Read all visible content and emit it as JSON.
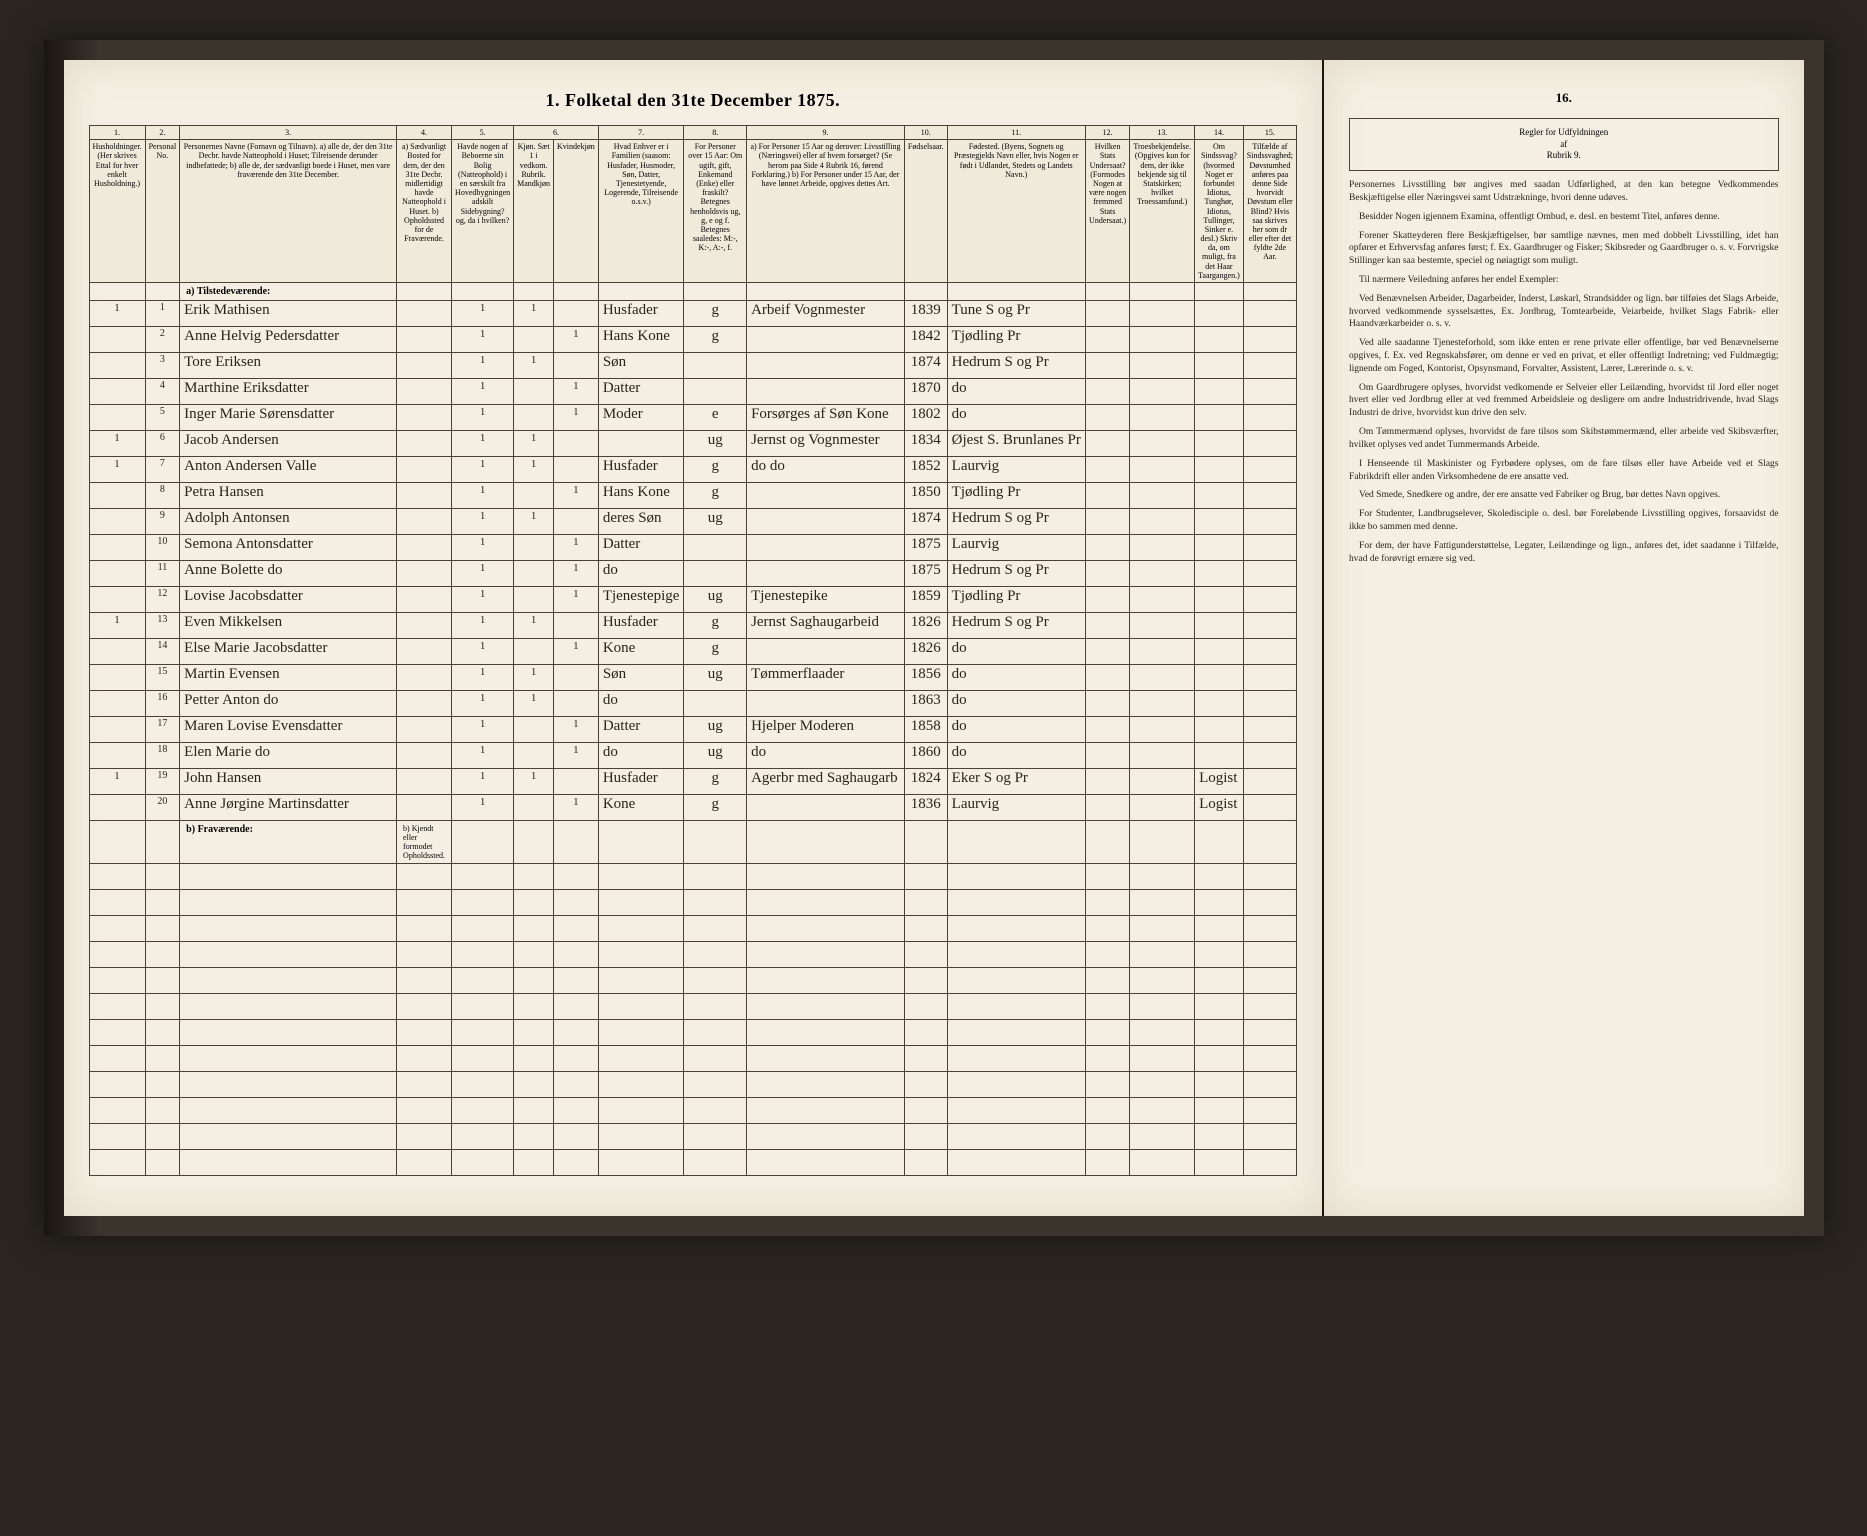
{
  "title": "1. Folketal den 31te December 1875.",
  "colNumbers": [
    "1.",
    "2.",
    "3.",
    "4.",
    "5.",
    "6.",
    "7.",
    "8.",
    "9.",
    "10.",
    "11.",
    "12.",
    "13.",
    "14.",
    "15."
  ],
  "headers": {
    "c1": "Husholdninger. (Her skrives Ettal for hver enkelt Husholdning.)",
    "c2": "Personal No.",
    "c3": "Personernes Navne (Fornavn og Tilnavn).\na) alle de, der den 31te Decbr. havde Natteophold i Huset; Tilreisende derunder indbefattede;\nb) alle de, der sædvanligt boede i Huset, men vare fraværende den 31te December.",
    "c4": "a) Sædvanligt Bosted for dem, der den 31te Decbr. midlertidigt havde Natteophold i Huset.\nb) Opholdssted for de Fraværende.",
    "c5": "Havde nogen af Beboerne sin Bolig (Natteophold) i en særskilt fra Hovedbygningen adskilt Sidebygning? og, da i hvilken?",
    "c6": "Kjøn. Sæt 1 i vedkom. Rubrik. Mandkjøn",
    "c6b": "Kvindekjøn",
    "c7": "Hvad Enhver er i Familien (saasom: Husfader, Husmoder, Søn, Datter, Tjenestetyende, Logerende, Tilreisende o.s.v.)",
    "c8": "For Personer over 15 Aar: Om ugift, gift, Enkemand (Enke) eller fraskilt? Betegnes henholdsvis ug, g, e og f. Betegnes saaledes: M:-, K:-, A:-, f.",
    "c9": "a) For Personer 15 Aar og derover: Livsstilling (Næringsvei) eller af hvem forsørget? (Se herom paa Side 4 Rubrik 16, førend Forklaring.)\nb) For Personer under 15 Aar, der have lønnet Arbeide, opgives dettes Art.",
    "c10": "Fødselsaar.",
    "c11": "Fødested. (Byens, Sognets og Præstegjelds Navn eller, hvis Nogen er født i Udlandet, Stedets og Landets Navn.)",
    "c12": "Hvilken Stats Undersaat? (Formodes Nogen at være nogen fremmed Stats Undersaat.)",
    "c13": "Troesbekjendelse. (Opgives kun for dem, der ikke bekjende sig til Statskirken; hvilket Troessamfund.)",
    "c14": "Om Sindssvag? (hvormed Noget er forbundet Idiotus, Tunghør, Idiotus, Tullinger, Sinker e. desl.) Skriv da, om muligt, fra det Haar Taargangen.)",
    "c15": "Tilfælde af Sindssvaghed; Døvstumhed anføres paa denne Side hvorvidt Døvstum eller Blind? Hvis saa skrives her som dr eller efter det fyldte 2de Aar."
  },
  "sectionA": "a) Tilstedeværende:",
  "sectionB": "b) Fraværende:",
  "sectionB_c4": "b) Kjendt eller formodet Opholdssted.",
  "rows": [
    {
      "hh": "1",
      "no": "1",
      "name": "Erik Mathisen",
      "c5": "1",
      "sexM": "1",
      "rel": "Husfader",
      "ms": "g",
      "occ": "Arbeif Vognmester",
      "year": "1839",
      "place": "Tune S og Pr"
    },
    {
      "hh": "",
      "no": "2",
      "name": "Anne Helvig Pedersdatter",
      "c5": "1",
      "sexF": "1",
      "rel": "Hans Kone",
      "ms": "g",
      "occ": "",
      "year": "1842",
      "place": "Tjødling Pr"
    },
    {
      "hh": "",
      "no": "3",
      "name": "Tore Eriksen",
      "c5": "1",
      "sexM": "1",
      "rel": "Søn",
      "ms": "",
      "occ": "",
      "year": "1874",
      "place": "Hedrum S og Pr"
    },
    {
      "hh": "",
      "no": "4",
      "name": "Marthine Eriksdatter",
      "c5": "1",
      "sexF": "1",
      "rel": "Datter",
      "ms": "",
      "occ": "",
      "year": "1870",
      "place": "do"
    },
    {
      "hh": "",
      "no": "5",
      "name": "Inger Marie Sørensdatter",
      "c5": "1",
      "sexF": "1",
      "rel": "Moder",
      "ms": "e",
      "occ": "Forsørges af Søn Kone",
      "year": "1802",
      "place": "do"
    },
    {
      "hh": "1",
      "no": "6",
      "name": "Jacob Andersen",
      "c5": "1",
      "sexM": "1",
      "rel": "",
      "ms": "ug",
      "occ": "Jernst og Vognmester",
      "year": "1834",
      "place": "Øjest S. Brunlanes Pr"
    },
    {
      "hh": "1",
      "no": "7",
      "name": "Anton Andersen Valle",
      "c5": "1",
      "sexM": "1",
      "rel": "Husfader",
      "ms": "g",
      "occ": "do do",
      "year": "1852",
      "place": "Laurvig"
    },
    {
      "hh": "",
      "no": "8",
      "name": "Petra Hansen",
      "c5": "1",
      "sexF": "1",
      "rel": "Hans Kone",
      "ms": "g",
      "occ": "",
      "year": "1850",
      "place": "Tjødling Pr"
    },
    {
      "hh": "",
      "no": "9",
      "name": "Adolph Antonsen",
      "c5": "1",
      "sexM": "1",
      "rel": "deres Søn",
      "ms": "ug",
      "occ": "",
      "year": "1874",
      "place": "Hedrum S og Pr"
    },
    {
      "hh": "",
      "no": "10",
      "name": "Semona Antonsdatter",
      "c5": "1",
      "sexF": "1",
      "rel": "Datter",
      "ms": "",
      "occ": "",
      "year": "1875",
      "place": "Laurvig"
    },
    {
      "hh": "",
      "no": "11",
      "name": "Anne Bolette do",
      "c5": "1",
      "sexF": "1",
      "rel": "do",
      "ms": "",
      "occ": "",
      "year": "1875",
      "place": "Hedrum S og Pr"
    },
    {
      "hh": "",
      "no": "12",
      "name": "Lovise Jacobsdatter",
      "c5": "1",
      "sexF": "1",
      "rel": "Tjenestepige",
      "ms": "ug",
      "occ": "Tjenestepike",
      "year": "1859",
      "place": "Tjødling Pr"
    },
    {
      "hh": "1",
      "no": "13",
      "name": "Even Mikkelsen",
      "c5": "1",
      "sexM": "1",
      "rel": "Husfader",
      "ms": "g",
      "occ": "Jernst Saghaugarbeid",
      "year": "1826",
      "place": "Hedrum S og Pr"
    },
    {
      "hh": "",
      "no": "14",
      "name": "Else Marie Jacobsdatter",
      "c5": "1",
      "sexF": "1",
      "rel": "Kone",
      "ms": "g",
      "occ": "",
      "year": "1826",
      "place": "do"
    },
    {
      "hh": "",
      "no": "15",
      "name": "Martin Evensen",
      "c5": "1",
      "sexM": "1",
      "rel": "Søn",
      "ms": "ug",
      "occ": "Tømmerflaader",
      "year": "1856",
      "place": "do"
    },
    {
      "hh": "",
      "no": "16",
      "name": "Petter Anton do",
      "c5": "1",
      "sexM": "1",
      "rel": "do",
      "ms": "",
      "occ": "",
      "year": "1863",
      "place": "do"
    },
    {
      "hh": "",
      "no": "17",
      "name": "Maren Lovise Evensdatter",
      "c5": "1",
      "sexF": "1",
      "rel": "Datter",
      "ms": "ug",
      "occ": "Hjelper Moderen",
      "year": "1858",
      "place": "do"
    },
    {
      "hh": "",
      "no": "18",
      "name": "Elen Marie do",
      "c5": "1",
      "sexF": "1",
      "rel": "do",
      "ms": "ug",
      "occ": "do",
      "year": "1860",
      "place": "do"
    },
    {
      "hh": "1",
      "no": "19",
      "name": "John Hansen",
      "c5": "1",
      "sexM": "1",
      "rel": "Husfader",
      "ms": "g",
      "occ": "Agerbr med Saghaugarb",
      "year": "1824",
      "place": "Eker S og Pr",
      "c14": "Logist"
    },
    {
      "hh": "",
      "no": "20",
      "name": "Anne Jørgine Martinsdatter",
      "c5": "1",
      "sexF": "1",
      "rel": "Kone",
      "ms": "g",
      "occ": "",
      "year": "1836",
      "place": "Laurvig",
      "c14": "Logist"
    }
  ],
  "blankRows": 12,
  "col16": {
    "number": "16.",
    "header": "Regler for Udfyldningen\naf\nRubrik 9.",
    "paragraphs": [
      "Personernes Livsstilling bør angives med saadan Udførlighed, at den kan betegne Vedkommendes Beskjæftigelse eller Næringsvei samt Udstrækninge, hvori denne udøves.",
      "Besidder Nogen igjennem Examina, offentligt Ombud, e. desl. en bestemt Titel, anføres denne.",
      "Forener Skatteyderen flere Beskjæftigelser, bør samtlige nævnes, men med dobbelt Livsstilling, idet han opfører et Erhvervsfag anføres først; f. Ex. Gaardbruger og Fisker; Skibsreder og Gaardbruger o. s. v. Forvrigske Stillinger kan saa bestemte, speciel og nøiagtigt som muligt.",
      "Til nærmere Veiledning anføres her endel Exempler:",
      "Ved Benævnelsen Arbeider, Dagarbeider, Inderst, Løskarl, Strandsidder og lign. bør tilføies det Slags Arbeide, hvorved vedkommende sysselsættes, Ex. Jordbrug, Tomtearbeide, Veiarbeide, hvilket Slags Fabrik- eller Haandværkarbeider o. s. v.",
      "Ved alle saadanne Tjenesteforhold, som ikke enten er rene private eller offentlige, bør ved Benævnelserne opgives, f. Ex. ved Regnskabsfører, om denne er ved en privat, et eller offentligt Indretning; ved Fuldmægtig; lignende om Foged, Kontorist, Opsynsmand, Forvalter, Assistent, Lærer, Lærerinde o. s. v.",
      "Om Gaardbrugere oplyses, hvorvidst vedkomende er Selveier eller Leilænding, hvorvidst til Jord eller noget hvert eller ved Jordbrug eller at ved fremmed Arbeidsleie og desligere om andre Industridrivende, hvad Slags Industri de drive, hvorvidst kun drive den selv.",
      "Om Tømmermænd oplyses, hvorvidst de fare tilsos som Skibstømmermænd, eller arbeide ved Skibsværfter, hvilket oplyses ved andet Tummermands Arbeide.",
      "I Henseende til Maskinister og Fyrbødere oplyses, om de fare tilsøs eller have Arbeide ved et Slags Fabrikdrift eller anden Virksomhedene de ere ansatte ved.",
      "Ved Smede, Snedkere og andre, der ere ansatte ved Fabriker og Brug, bør dettes Navn opgives.",
      "For Studenter, Landbrugselever, Skoledisciple o. desl. bør Foreløbende Livsstilling opgives, forsaavidst de ikke bo sammen med denne.",
      "For dem, der have Fattigunderstøttelse, Legater, Leilændinge og lign., anføres det, idet saadanne i Tilfælde, hvad de forøvrigt ernære sig ved."
    ]
  }
}
